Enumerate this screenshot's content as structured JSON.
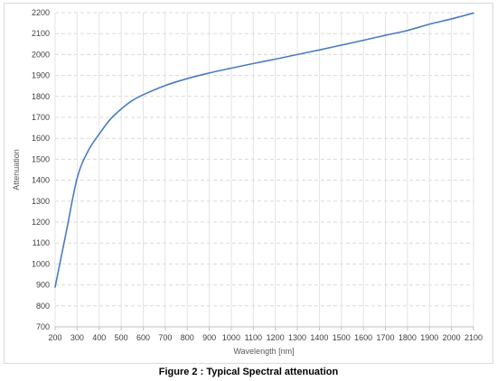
{
  "caption": "Figure 2 : Typical Spectral attenuation",
  "chart_data": {
    "type": "line",
    "title": "",
    "xlabel": "Wavelength [nm]",
    "ylabel": "Attenuation",
    "xlim": [
      200,
      2100
    ],
    "ylim": [
      700,
      2200
    ],
    "x_ticks": [
      200,
      300,
      400,
      500,
      600,
      700,
      800,
      900,
      1000,
      1100,
      1200,
      1300,
      1400,
      1500,
      1600,
      1700,
      1800,
      1900,
      2000,
      2100
    ],
    "y_ticks": [
      700,
      800,
      900,
      1000,
      1100,
      1200,
      1300,
      1400,
      1500,
      1600,
      1700,
      1800,
      1900,
      2000,
      2100,
      2200
    ],
    "grid": "dashed",
    "legend": "none",
    "series": [
      {
        "color": "#4a7bc0",
        "x": [
          200,
          250,
          300,
          350,
          400,
          450,
          500,
          550,
          600,
          700,
          800,
          900,
          1000,
          1100,
          1200,
          1300,
          1400,
          1500,
          1600,
          1700,
          1800,
          1900,
          2000,
          2100
        ],
        "y": [
          890,
          1150,
          1410,
          1540,
          1620,
          1690,
          1740,
          1780,
          1808,
          1852,
          1885,
          1912,
          1935,
          1957,
          1978,
          2000,
          2022,
          2045,
          2068,
          2092,
          2115,
          2145,
          2170,
          2198
        ]
      }
    ]
  }
}
